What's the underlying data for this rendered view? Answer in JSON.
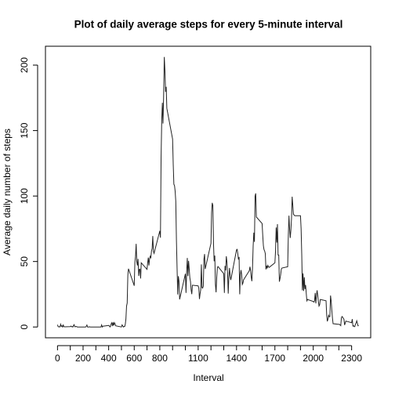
{
  "chart_data": {
    "type": "line",
    "title": "Plot of daily average steps for every 5-minute interval",
    "xlabel": "Interval",
    "ylabel": "Average daily number of steps",
    "color": "#222222",
    "x": [
      0,
      5,
      10,
      15,
      20,
      25,
      30,
      35,
      40,
      45,
      50,
      55,
      100,
      105,
      110,
      115,
      120,
      125,
      130,
      135,
      140,
      145,
      150,
      155,
      200,
      205,
      210,
      215,
      220,
      225,
      230,
      235,
      240,
      245,
      250,
      255,
      300,
      305,
      310,
      315,
      320,
      325,
      330,
      335,
      340,
      345,
      350,
      355,
      400,
      405,
      410,
      415,
      420,
      425,
      430,
      435,
      440,
      445,
      450,
      455,
      500,
      505,
      510,
      515,
      520,
      525,
      530,
      535,
      540,
      545,
      550,
      555,
      600,
      605,
      610,
      615,
      620,
      625,
      630,
      635,
      640,
      645,
      650,
      655,
      700,
      705,
      710,
      715,
      720,
      725,
      730,
      735,
      740,
      745,
      750,
      755,
      800,
      805,
      810,
      815,
      820,
      825,
      830,
      835,
      840,
      845,
      850,
      855,
      900,
      905,
      910,
      915,
      920,
      925,
      930,
      935,
      940,
      945,
      950,
      955,
      1000,
      1005,
      1010,
      1015,
      1020,
      1025,
      1030,
      1035,
      1040,
      1045,
      1050,
      1055,
      1100,
      1105,
      1110,
      1115,
      1120,
      1125,
      1130,
      1135,
      1140,
      1145,
      1150,
      1155,
      1200,
      1205,
      1210,
      1215,
      1220,
      1225,
      1230,
      1235,
      1240,
      1245,
      1250,
      1255,
      1300,
      1305,
      1310,
      1315,
      1320,
      1325,
      1330,
      1335,
      1340,
      1345,
      1350,
      1355,
      1400,
      1405,
      1410,
      1415,
      1420,
      1425,
      1430,
      1435,
      1440,
      1445,
      1450,
      1455,
      1500,
      1505,
      1510,
      1515,
      1520,
      1525,
      1530,
      1535,
      1540,
      1545,
      1550,
      1555,
      1600,
      1605,
      1610,
      1615,
      1620,
      1625,
      1630,
      1635,
      1640,
      1645,
      1650,
      1655,
      1700,
      1705,
      1710,
      1715,
      1720,
      1725,
      1730,
      1735,
      1740,
      1745,
      1750,
      1755,
      1800,
      1805,
      1810,
      1815,
      1820,
      1825,
      1830,
      1835,
      1840,
      1845,
      1850,
      1855,
      1900,
      1905,
      1910,
      1915,
      1920,
      1925,
      1930,
      1935,
      1940,
      1945,
      1950,
      1955,
      2000,
      2005,
      2010,
      2015,
      2020,
      2025,
      2030,
      2035,
      2040,
      2045,
      2050,
      2055,
      2100,
      2105,
      2110,
      2115,
      2120,
      2125,
      2130,
      2135,
      2140,
      2145,
      2150,
      2155,
      2200,
      2205,
      2210,
      2215,
      2220,
      2225,
      2230,
      2235,
      2240,
      2245,
      2250,
      2255,
      2300,
      2305,
      2310,
      2315,
      2320,
      2325,
      2330,
      2335,
      2340,
      2345,
      2350,
      2355
    ],
    "values": [
      1.7,
      0.3,
      0.1,
      0.2,
      0.1,
      2.1,
      0.5,
      0.9,
      0,
      1.5,
      0.3,
      0.1,
      0.3,
      0.7,
      0.2,
      0.3,
      0,
      1.1,
      1.8,
      0.2,
      0.2,
      0.4,
      0.3,
      0,
      0,
      0,
      0,
      0,
      0,
      0.5,
      1.5,
      0,
      0,
      0,
      0.2,
      0,
      0,
      0,
      0,
      0,
      0,
      0,
      0,
      0,
      0,
      1.6,
      0,
      0.6,
      1.2,
      0.9,
      0,
      0.5,
      2.5,
      3.3,
      0.7,
      3.5,
      1.2,
      3.3,
      2.4,
      0.9,
      0,
      1.6,
      0.9,
      0,
      0.4,
      0.3,
      2.0,
      6.1,
      16.0,
      18.3,
      39.5,
      44.5,
      31.5,
      49.3,
      53.8,
      63.5,
      50.0,
      47.0,
      52.0,
      39.0,
      44.0,
      44.2,
      37.0,
      49.0,
      44.0,
      49.0,
      53.0,
      47.0,
      52.0,
      54.0,
      53.0,
      58.0,
      60.0,
      69.5,
      57.8,
      56.2,
      73.4,
      68.2,
      129.4,
      157.5,
      171.2,
      155.4,
      177.3,
      206.2,
      195.9,
      179.6,
      183.4,
      167.0,
      143.5,
      124.0,
      109.0,
      108.0,
      103.7,
      95.9,
      66.2,
      45.2,
      24.8,
      38.8,
      35.0,
      21.1,
      40.6,
      26.0,
      42.0,
      52.7,
      38.9,
      50.5,
      44.3,
      37.4,
      34.7,
      28.3,
      25.1,
      31.9,
      31.4,
      29.7,
      21.3,
      25.5,
      28.4,
      47.8,
      30.0,
      29.7,
      31.2,
      51.6,
      55.7,
      44.3,
      63.9,
      87.6,
      94.8,
      92.8,
      63.4,
      50.2,
      54.5,
      32.4,
      26.5,
      37.7,
      45.1,
      46.2,
      40.7,
      26.0,
      46.6,
      43.2,
      54.0,
      49.5,
      41.2,
      25.5,
      38.5,
      45.1,
      38.9,
      35.9,
      58.9,
      59.3,
      55.9,
      51.5,
      53.5,
      25.0,
      40.0,
      43.5,
      40.0,
      32.5,
      33.5,
      36.0,
      43.0,
      46.0,
      43.0,
      38.0,
      35.0,
      45.0,
      62.0,
      72.0,
      65.0,
      100.0,
      102.0,
      84.0,
      79.0,
      70.0,
      62.0,
      59.0,
      58.0,
      56.0,
      44.0,
      46.8,
      44.7,
      47.0,
      46.0,
      45.5,
      49.0,
      58.0,
      76.0,
      64.5,
      78.5,
      55.0,
      55.0,
      34.6,
      37.0,
      40.0,
      44.0,
      45.0,
      46.0,
      70.0,
      85.0,
      75.0,
      68.0,
      74.0,
      83.0,
      99.5,
      93.0,
      86.0,
      85.6,
      85.0,
      85.0,
      75.0,
      55.0,
      28.0,
      41.0,
      27.5,
      38.0,
      29.0,
      32.0,
      26.0,
      20.0,
      21.0,
      19.5,
      19.0,
      20.0,
      26.0,
      18.0,
      24.0,
      28.0,
      24.0,
      19.5,
      16.0,
      17.0,
      21.0,
      20.0,
      9.0,
      4.3,
      6.0,
      8.9,
      7.8,
      8.0,
      24.0,
      20.0,
      13.0,
      7.0,
      2.5,
      2.0,
      2.0,
      1.5,
      1.0,
      7.0,
      8.0,
      7.5,
      6.5,
      6.0,
      1.5,
      3.0,
      4.5,
      3.3,
      6.0,
      0.7,
      1.0,
      0.3,
      0.3,
      2.2,
      3.0,
      4.7,
      3.0,
      0.9,
      1.1
    ],
    "xlim": [
      -94.2,
      2449.2
    ],
    "ylim": [
      -8.25,
      214.4
    ],
    "xticks": [
      0,
      200,
      400,
      600,
      800,
      1100,
      1400,
      1700,
      2000,
      2300
    ],
    "xminor_ticks": [
      100,
      300,
      500,
      700,
      900,
      1000,
      1200,
      1300,
      1500,
      1600,
      1800,
      1900,
      2100,
      2200
    ],
    "yticks": [
      0,
      50,
      100,
      150,
      200
    ]
  }
}
